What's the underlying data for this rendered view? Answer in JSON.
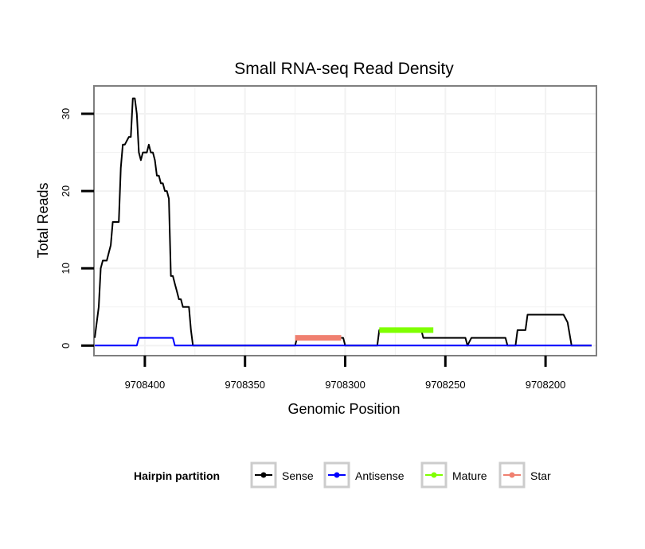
{
  "chart_data": {
    "type": "line",
    "title": "Small RNA-seq Read Density",
    "xlabel": "Genomic Position",
    "ylabel": "Total Reads",
    "x_reversed": true,
    "xlim": [
      9708425,
      9708175
    ],
    "ylim": [
      -1.2,
      33.5
    ],
    "x_ticks": [
      9708400,
      9708350,
      9708300,
      9708250,
      9708200
    ],
    "x_tick_labels": [
      "9708400",
      "9708350",
      "9708300",
      "9708250",
      "9708200"
    ],
    "y_ticks": [
      0,
      10,
      20,
      30
    ],
    "y_tick_labels": [
      "0",
      "10",
      "20",
      "30"
    ],
    "grid": true,
    "legend": {
      "title": "Hairpin partition",
      "position": "bottom",
      "entries": [
        "Sense",
        "Antisense",
        "Mature",
        "Star"
      ]
    },
    "series": [
      {
        "name": "Sense",
        "color": "#000000",
        "x": [
          9708425,
          9708423,
          9708422,
          9708421,
          9708419,
          9708418,
          9708417,
          9708416,
          9708414,
          9708413,
          9708412,
          9708411,
          9708410,
          9708408,
          9708407,
          9708406,
          9708405,
          9708404,
          9708403,
          9708402,
          9708401,
          9708400,
          9708399,
          9708398,
          9708397,
          9708396,
          9708395,
          9708394,
          9708393,
          9708392,
          9708391,
          9708390,
          9708389,
          9708388,
          9708387,
          9708386,
          9708385,
          9708384,
          9708383,
          9708382,
          9708381,
          9708380,
          9708379,
          9708378,
          9708377,
          9708376,
          9708375,
          9708374,
          9708373,
          9708325,
          9708324,
          9708301,
          9708300,
          9708284,
          9708283,
          9708262,
          9708261,
          9708258,
          9708257,
          9708240,
          9708239,
          9708237,
          9708236,
          9708220,
          9708219,
          9708215,
          9708214,
          9708210,
          9708209,
          9708192,
          9708191,
          9708189,
          9708187,
          9708186,
          9708177
        ],
        "y": [
          1,
          5,
          10,
          11,
          11,
          12,
          13,
          16,
          16,
          16,
          23,
          26,
          26,
          27,
          27,
          32,
          32,
          30,
          25,
          24,
          25,
          25,
          25,
          26,
          25,
          25,
          24,
          22,
          22,
          21,
          21,
          20,
          20,
          19,
          9,
          9,
          8,
          7,
          6,
          6,
          5,
          5,
          5,
          5,
          2,
          0,
          0,
          0,
          0,
          0,
          1,
          1,
          0,
          0,
          2,
          2,
          1,
          1,
          1,
          1,
          0,
          1,
          1,
          1,
          0,
          0,
          2,
          2,
          4,
          4,
          4,
          3,
          0,
          0,
          0
        ]
      },
      {
        "name": "Antisense",
        "color": "#0000ff",
        "x": [
          9708425,
          9708404,
          9708403,
          9708386,
          9708385,
          9708177
        ],
        "y": [
          0,
          0,
          1,
          1,
          0,
          0
        ]
      },
      {
        "name": "Mature",
        "color": "#7fff00",
        "x": [
          9708283,
          9708256
        ],
        "y": [
          2,
          2
        ]
      },
      {
        "name": "Star",
        "color": "#f08070",
        "x": [
          9708325,
          9708302
        ],
        "y": [
          1,
          1
        ]
      }
    ]
  }
}
